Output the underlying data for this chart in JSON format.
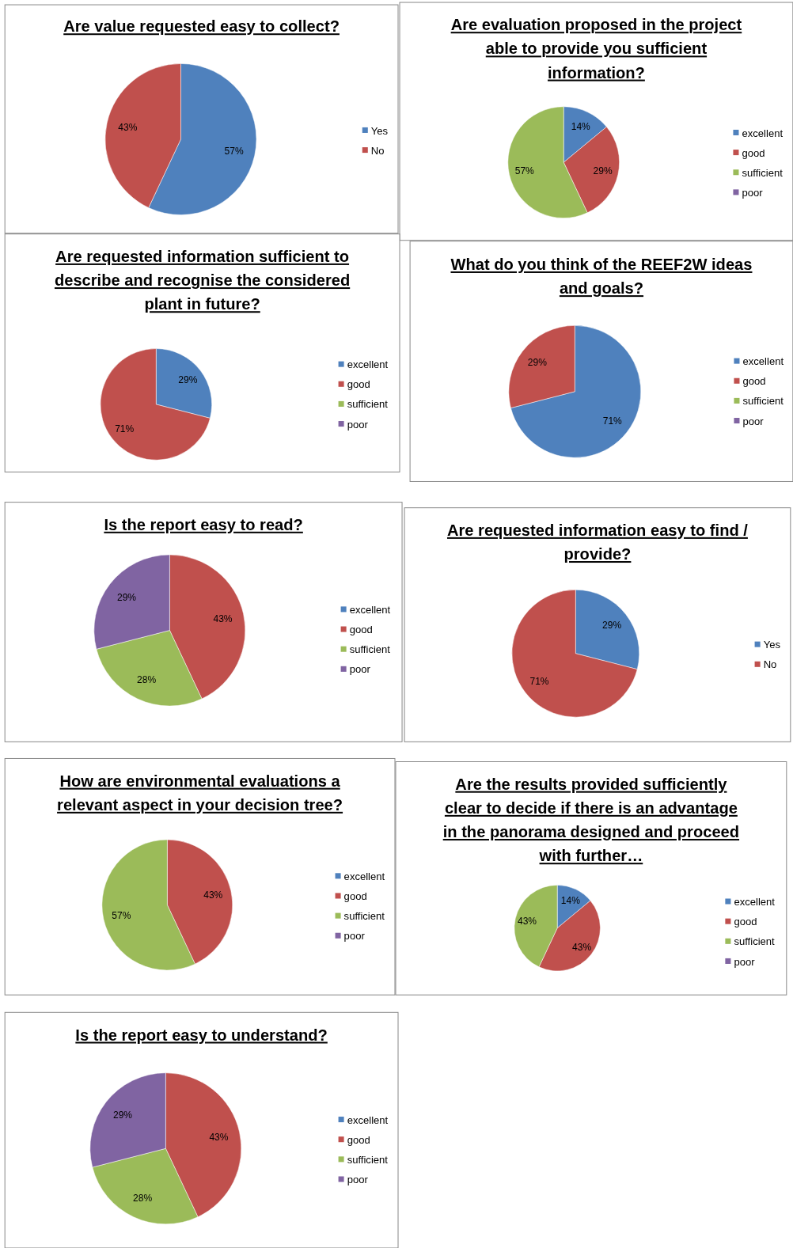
{
  "chart_data": [
    {
      "type": "pie",
      "title": "Are value requested easy to collect?",
      "categories": [
        "Yes",
        "No"
      ],
      "values": [
        57,
        43
      ],
      "colors": [
        "#4f81bd",
        "#c0504d"
      ],
      "value_labels": [
        "57%",
        "43%"
      ],
      "legend": "right"
    },
    {
      "type": "pie",
      "title": "Are evaluation proposed in the project able to provide you sufficient information?",
      "categories": [
        "excellent",
        "good",
        "sufficient",
        "poor"
      ],
      "values": [
        14,
        29,
        57,
        0
      ],
      "colors": [
        "#4f81bd",
        "#c0504d",
        "#9bbb59",
        "#8064a2"
      ],
      "value_labels": [
        "14%",
        "29%",
        "57%",
        null
      ],
      "legend": "right"
    },
    {
      "type": "pie",
      "title": "Are requested information sufficient to describe and recognise the considered plant in future?",
      "categories": [
        "excellent",
        "good",
        "sufficient",
        "poor"
      ],
      "values": [
        29,
        71,
        0,
        0
      ],
      "colors": [
        "#4f81bd",
        "#c0504d",
        "#9bbb59",
        "#8064a2"
      ],
      "value_labels": [
        "29%",
        "71%",
        null,
        null
      ],
      "legend": "right"
    },
    {
      "type": "pie",
      "title": "What do you think of the REEF2W ideas and goals?",
      "categories": [
        "excellent",
        "good",
        "sufficient",
        "poor"
      ],
      "values": [
        71,
        29,
        0,
        0
      ],
      "colors": [
        "#4f81bd",
        "#c0504d",
        "#9bbb59",
        "#8064a2"
      ],
      "value_labels": [
        "71%",
        "29%",
        null,
        null
      ],
      "legend": "right"
    },
    {
      "type": "pie",
      "title": "Is the report easy to read?",
      "categories": [
        "excellent",
        "good",
        "sufficient",
        "poor"
      ],
      "values": [
        0,
        43,
        28,
        29
      ],
      "colors": [
        "#4f81bd",
        "#c0504d",
        "#9bbb59",
        "#8064a2"
      ],
      "value_labels": [
        null,
        "43%",
        "28%",
        "29%"
      ],
      "legend": "right"
    },
    {
      "type": "pie",
      "title": "Are requested information easy to find / provide?",
      "categories": [
        "Yes",
        "No"
      ],
      "values": [
        29,
        71
      ],
      "colors": [
        "#4f81bd",
        "#c0504d"
      ],
      "value_labels": [
        "29%",
        "71%"
      ],
      "legend": "right"
    },
    {
      "type": "pie",
      "title": "How are environmental evaluations a relevant aspect in your decision tree?",
      "categories": [
        "excellent",
        "good",
        "sufficient",
        "poor"
      ],
      "values": [
        0,
        43,
        57,
        0
      ],
      "colors": [
        "#4f81bd",
        "#c0504d",
        "#9bbb59",
        "#8064a2"
      ],
      "value_labels": [
        null,
        "43%",
        "57%",
        null
      ],
      "legend": "right"
    },
    {
      "type": "pie",
      "title": "Are the results provided sufficiently clear to decide if there is an advantage in the panorama designed and proceed with further…",
      "categories": [
        "excellent",
        "good",
        "sufficient",
        "poor"
      ],
      "values": [
        14,
        43,
        43,
        0
      ],
      "colors": [
        "#4f81bd",
        "#c0504d",
        "#9bbb59",
        "#8064a2"
      ],
      "value_labels": [
        "14%",
        "43%",
        "43%",
        null
      ],
      "legend": "right"
    },
    {
      "type": "pie",
      "title": "Is the report easy to understand?",
      "categories": [
        "excellent",
        "good",
        "sufficient",
        "poor"
      ],
      "values": [
        0,
        43,
        28,
        29
      ],
      "colors": [
        "#4f81bd",
        "#c0504d",
        "#9bbb59",
        "#8064a2"
      ],
      "value_labels": [
        null,
        "43%",
        "28%",
        "29%"
      ],
      "legend": "right"
    }
  ]
}
